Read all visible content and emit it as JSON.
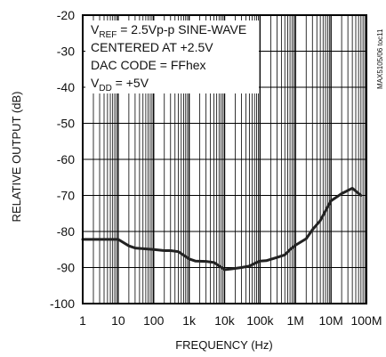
{
  "chart_data": {
    "type": "line",
    "title": "",
    "xlabel": "FREQUENCY (Hz)",
    "ylabel": "RELATIVE OUTPUT (dB)",
    "x_scale": "log",
    "x_range_hz": [
      1,
      100000000
    ],
    "xlim": [
      1,
      100000000
    ],
    "ylim": [
      -100,
      -20
    ],
    "grid": true,
    "y_ticks": [
      -20,
      -30,
      -40,
      -50,
      -60,
      -70,
      -80,
      -90,
      -100
    ],
    "x_ticks": [
      {
        "value": 1,
        "label": "1"
      },
      {
        "value": 10,
        "label": "10"
      },
      {
        "value": 100,
        "label": "100"
      },
      {
        "value": 1000,
        "label": "1k"
      },
      {
        "value": 10000,
        "label": "10k"
      },
      {
        "value": 100000,
        "label": "100k"
      },
      {
        "value": 1000000,
        "label": "1M"
      },
      {
        "value": 10000000,
        "label": "10M"
      },
      {
        "value": 100000000,
        "label": "100M"
      }
    ],
    "annotations": [
      {
        "main": "V",
        "sub": "REF",
        "rest": " = 2.5Vp-p SINE-WAVE"
      },
      {
        "main": "CENTERED AT +2.5V",
        "sub": "",
        "rest": ""
      },
      {
        "main": "DAC CODE = FFhex",
        "sub": "",
        "rest": ""
      },
      {
        "main": "V",
        "sub": "DD",
        "rest": " = +5V"
      }
    ],
    "figure_id": "MAX5105/06 toc11",
    "series": [
      {
        "x": [
          1,
          3,
          10,
          20,
          30,
          100,
          200,
          300,
          500,
          1000,
          1500,
          3000,
          5000,
          10000,
          15000,
          30000,
          50000,
          80000,
          100000,
          150000,
          300000,
          500000,
          700000,
          1000000,
          2000000,
          3000000,
          5000000,
          10000000,
          20000000,
          40000000,
          70000000
        ],
        "y": [
          -82.2,
          -82.2,
          -82.2,
          -84,
          -84.6,
          -85,
          -85.3,
          -85.3,
          -85.6,
          -87.6,
          -88.2,
          -88.3,
          -88.6,
          -90.6,
          -90.4,
          -90,
          -89.6,
          -88.6,
          -88.2,
          -88.1,
          -87.2,
          -86.5,
          -85,
          -83.8,
          -82,
          -79.5,
          -77,
          -71.5,
          -69.5,
          -68,
          -70
        ]
      }
    ]
  }
}
